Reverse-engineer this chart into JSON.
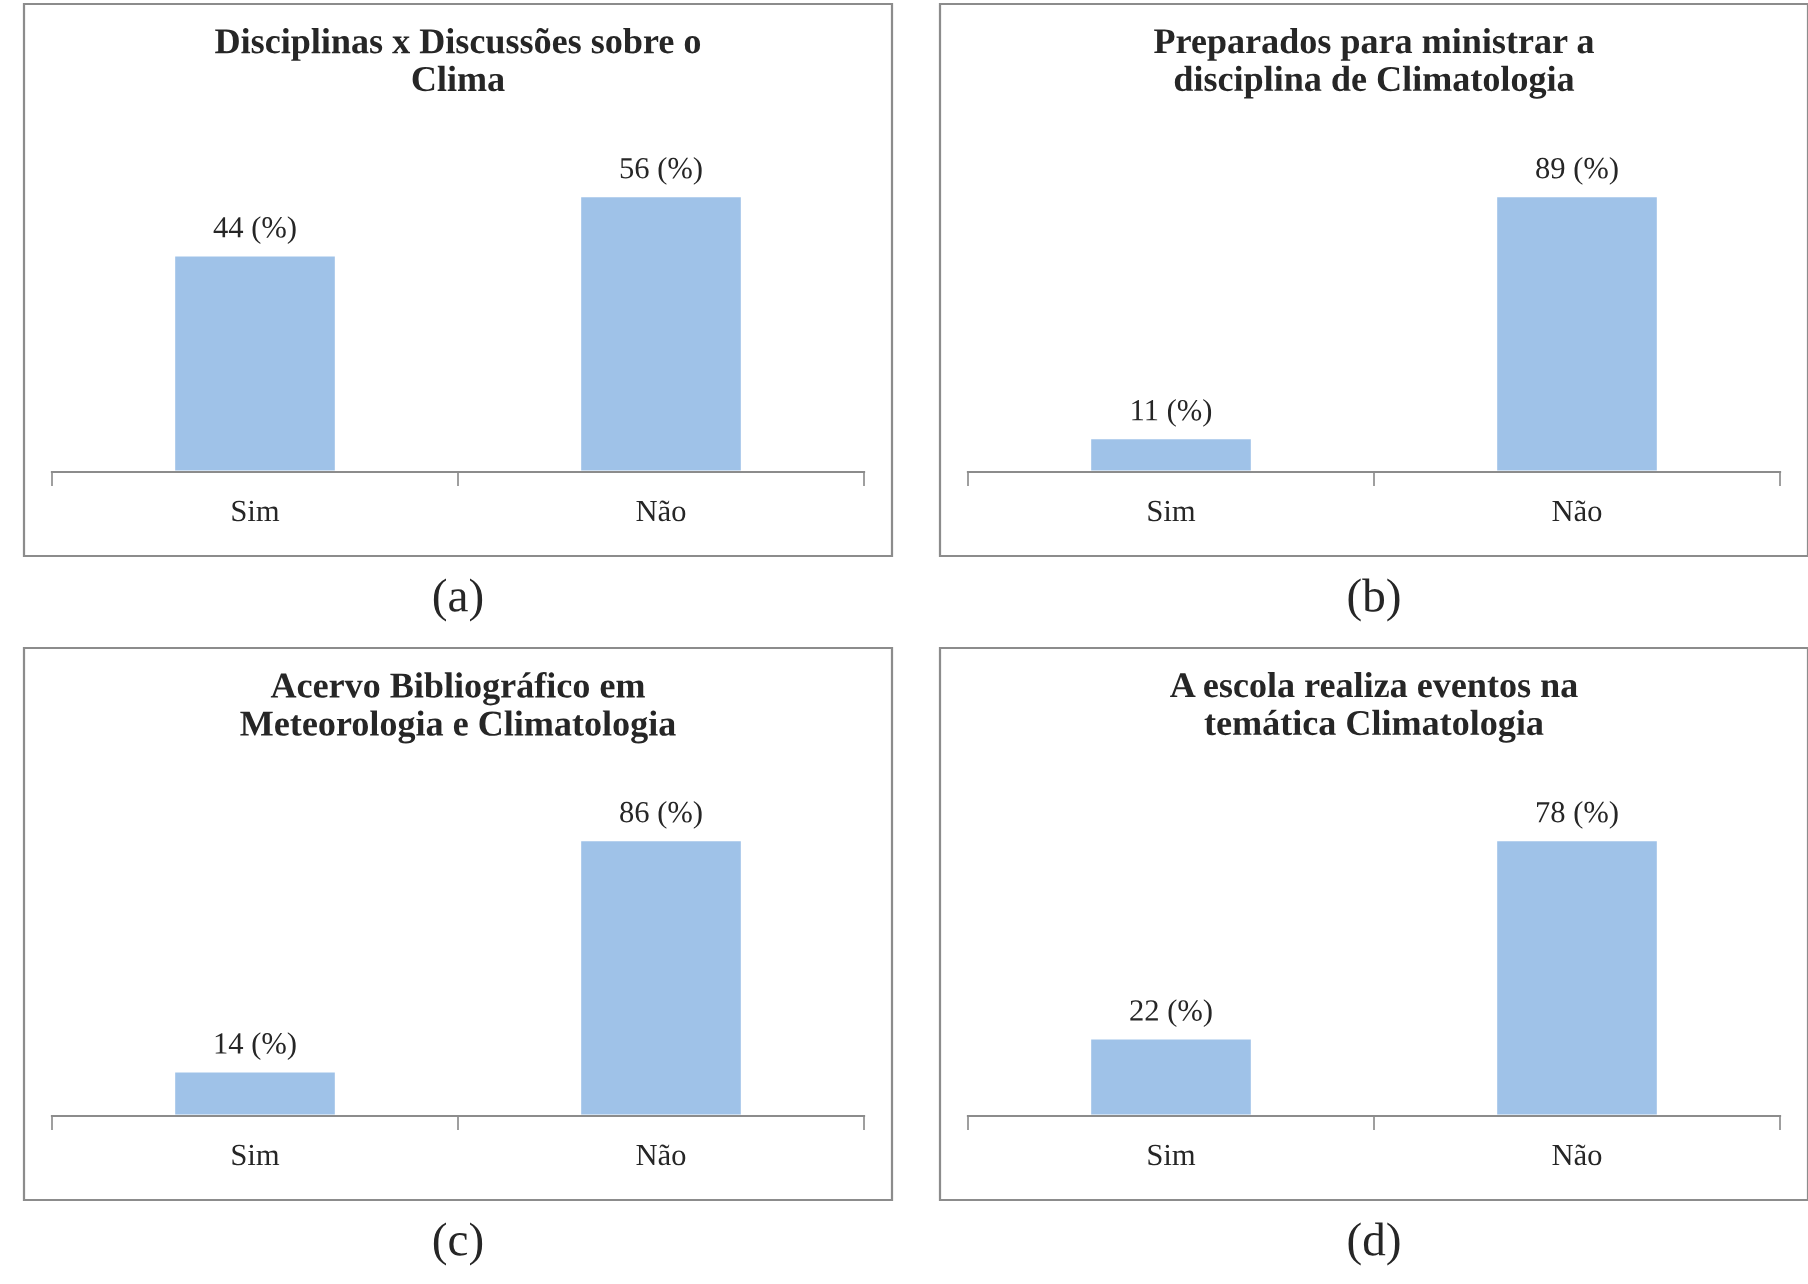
{
  "chart_data": [
    {
      "type": "bar",
      "title": "Disciplinas x Discussões sobre o Clima",
      "categories": [
        "Sim",
        "Não"
      ],
      "values": [
        44,
        56
      ],
      "value_labels": [
        "44 (%)",
        "56 (%)"
      ],
      "color": "#9fc2e8",
      "annotations": [
        "(a)"
      ],
      "grid": false,
      "legend": false
    },
    {
      "type": "bar",
      "title": "Preparados para ministrar a disciplina de Climatologia",
      "categories": [
        "Sim",
        "Não"
      ],
      "values": [
        11,
        89
      ],
      "value_labels": [
        "11 (%)",
        "89 (%)"
      ],
      "color": "#9fc2e8",
      "annotations": [
        "(b)"
      ],
      "grid": false,
      "legend": false
    },
    {
      "type": "bar",
      "title": "Acervo Bibliográfico em Meteorologia e Climatologia",
      "categories": [
        "Sim",
        "Não"
      ],
      "values": [
        14,
        86
      ],
      "value_labels": [
        "14 (%)",
        "86 (%)"
      ],
      "color": "#9fc2e8",
      "annotations": [
        "(c)"
      ],
      "grid": false,
      "legend": false
    },
    {
      "type": "bar",
      "title": "A escola realiza eventos na temática Climatologia",
      "categories": [
        "Sim",
        "Não"
      ],
      "values": [
        22,
        78
      ],
      "value_labels": [
        "22 (%)",
        "78 (%)"
      ],
      "color": "#9fc2e8",
      "annotations": [
        "(d)"
      ],
      "grid": false,
      "legend": false
    }
  ]
}
